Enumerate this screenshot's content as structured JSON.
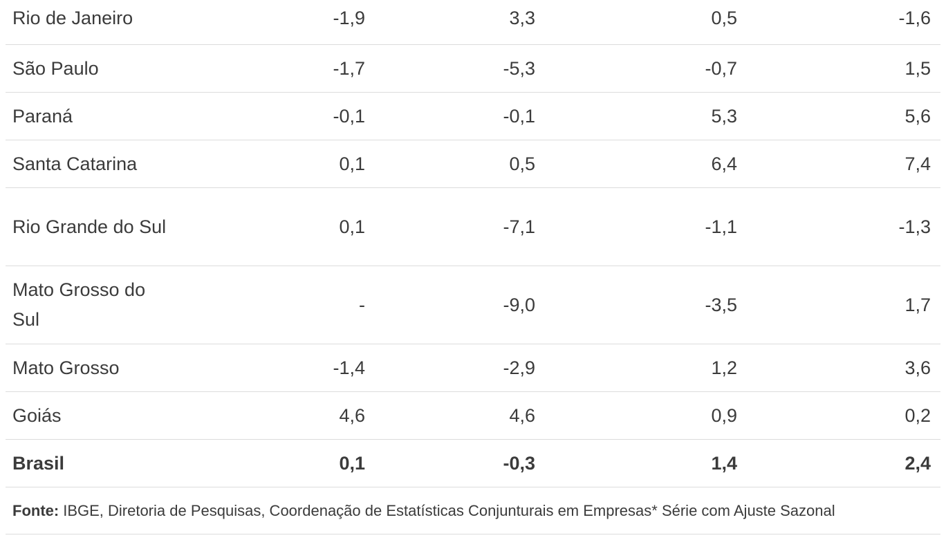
{
  "table": {
    "rows": [
      {
        "name": "Rio de Janeiro",
        "v1": "-1,9",
        "v2": "3,3",
        "v3": "0,5",
        "v4": "-1,6"
      },
      {
        "name": "São Paulo",
        "v1": "-1,7",
        "v2": "-5,3",
        "v3": "-0,7",
        "v4": "1,5"
      },
      {
        "name": "Paraná",
        "v1": "-0,1",
        "v2": "-0,1",
        "v3": "5,3",
        "v4": "5,6"
      },
      {
        "name": "Santa Catarina",
        "v1": "0,1",
        "v2": "0,5",
        "v3": "6,4",
        "v4": "7,4"
      },
      {
        "name": "Rio Grande do Sul",
        "v1": "0,1",
        "v2": "-7,1",
        "v3": "-1,1",
        "v4": "-1,3"
      },
      {
        "name": "Mato Grosso do Sul",
        "v1": "-",
        "v2": "-9,0",
        "v3": "-3,5",
        "v4": "1,7"
      },
      {
        "name": "Mato Grosso",
        "v1": "-1,4",
        "v2": "-2,9",
        "v3": "1,2",
        "v4": "3,6"
      },
      {
        "name": "Goiás",
        "v1": "4,6",
        "v2": "4,6",
        "v3": "0,9",
        "v4": "0,2"
      }
    ],
    "total": {
      "name": "Brasil",
      "v1": "0,1",
      "v2": "-0,3",
      "v3": "1,4",
      "v4": "2,4"
    }
  },
  "footer": {
    "source_label": "Fonte:",
    "source_text": "IBGE, Diretoria de Pesquisas, Coordenação de Estatísticas Conjunturais em Empresas* Série com Ajuste Sazonal"
  }
}
